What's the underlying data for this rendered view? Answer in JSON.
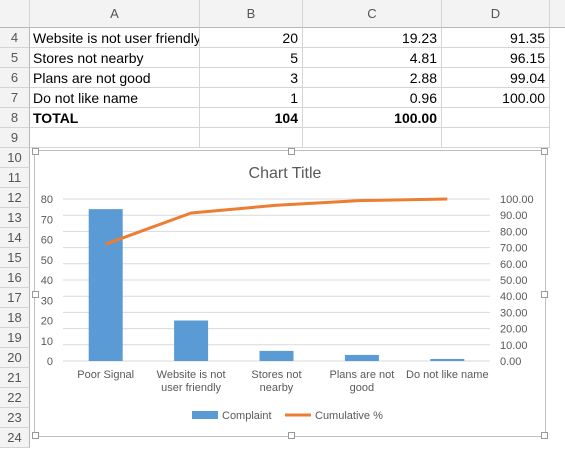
{
  "sheet": {
    "columns": [
      "A",
      "B",
      "C",
      "D"
    ],
    "rows": [
      {
        "num": "4",
        "a": "Website is not user friendly",
        "b": "20",
        "c": "19.23",
        "d": "91.35"
      },
      {
        "num": "5",
        "a": "Stores not nearby",
        "b": "5",
        "c": "4.81",
        "d": "96.15"
      },
      {
        "num": "6",
        "a": "Plans are not good",
        "b": "3",
        "c": "2.88",
        "d": "99.04"
      },
      {
        "num": "7",
        "a": "Do not like name",
        "b": "1",
        "c": "0.96",
        "d": "100.00"
      },
      {
        "num": "8",
        "a": "TOTAL",
        "b": "104",
        "c": "100.00",
        "d": ""
      }
    ],
    "empty_row_numbers": [
      "9",
      "10",
      "11",
      "12",
      "13",
      "14",
      "15",
      "16",
      "17",
      "18",
      "19",
      "20",
      "21",
      "22",
      "23",
      "24"
    ]
  },
  "chart_data": {
    "type": "bar",
    "title": "Chart Title",
    "categories": [
      "Poor Signal",
      "Website is not user friendly",
      "Stores not nearby",
      "Plans are not good",
      "Do not like name"
    ],
    "series": [
      {
        "name": "Complaint",
        "type": "bar",
        "axis": "left",
        "color": "#5b9bd5",
        "values": [
          75,
          20,
          5,
          3,
          1
        ]
      },
      {
        "name": "Cumulative %",
        "type": "line",
        "axis": "right",
        "color": "#ed7d31",
        "values": [
          72.12,
          91.35,
          96.15,
          99.04,
          100.0
        ]
      }
    ],
    "y_left": {
      "min": 0,
      "max": 80,
      "ticks": [
        "0",
        "10",
        "20",
        "30",
        "40",
        "50",
        "60",
        "70",
        "80"
      ]
    },
    "y_right": {
      "min": 0,
      "max": 100,
      "ticks": [
        "0.00",
        "10.00",
        "20.00",
        "30.00",
        "40.00",
        "50.00",
        "60.00",
        "70.00",
        "80.00",
        "90.00",
        "100.00"
      ]
    },
    "grid": true,
    "legend": "bottom"
  }
}
